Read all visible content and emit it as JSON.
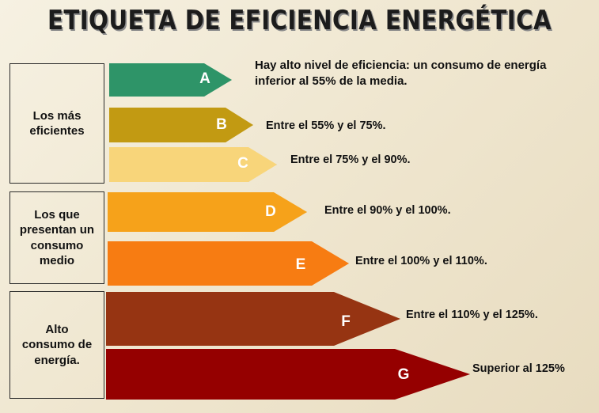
{
  "title": "ETIQUETA  DE  EFICIENCIA  ENERGÉTICA",
  "groups": [
    {
      "label": "Los más eficientes"
    },
    {
      "label": "Los que presentan un consumo medio"
    },
    {
      "label": "Alto consumo de energía."
    }
  ],
  "classes": [
    {
      "letter": "A",
      "color": "#2e9468",
      "description": "Hay alto nivel de eficiencia: un consumo de energía inferior al 55% de la media."
    },
    {
      "letter": "B",
      "color": "#c29a12",
      "description": "Entre el 55% y el 75%."
    },
    {
      "letter": "C",
      "color": "#f8d57a",
      "description": "Entre el 75% y el 90%."
    },
    {
      "letter": "D",
      "color": "#f6a21a",
      "description": "Entre el 90% y el 100%."
    },
    {
      "letter": "E",
      "color": "#f77c12",
      "description": "Entre el 100% y el 110%."
    },
    {
      "letter": "F",
      "color": "#963412",
      "description": "Entre el 110% y el 125%."
    },
    {
      "letter": "G",
      "color": "#950000",
      "description": "Superior al 125%"
    }
  ]
}
